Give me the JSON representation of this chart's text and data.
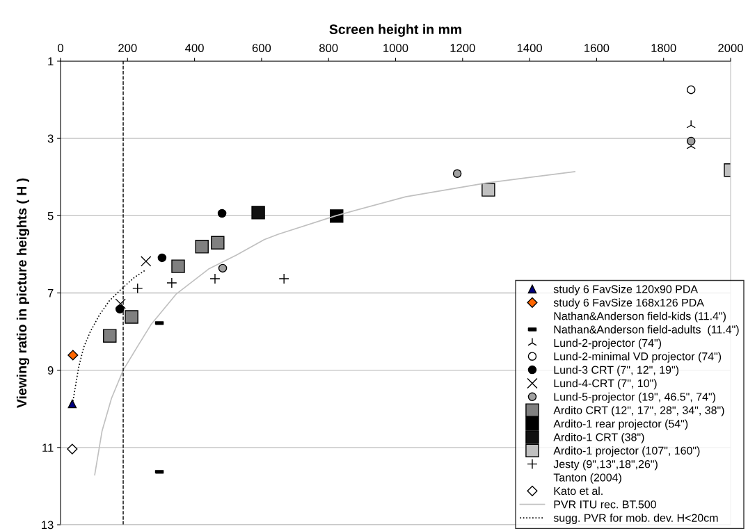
{
  "chart_data": {
    "type": "scatter",
    "xlabel": "Screen height in mm",
    "ylabel": "Viewing ratio in picture heights ( H )",
    "xlim": [
      0,
      2000
    ],
    "xticks": [
      0,
      200,
      400,
      600,
      800,
      1000,
      1200,
      1400,
      1600,
      1800,
      2000
    ],
    "ylim": [
      13,
      1
    ],
    "yticks": [
      1,
      3,
      5,
      7,
      9,
      11,
      13
    ],
    "grid": "y",
    "legend": "bottom right",
    "ref_lines": [
      {
        "axis": "x",
        "value": 187,
        "color": "#000000",
        "line_style": "dashed"
      }
    ],
    "series": [
      {
        "name": "study 6 FavSize 120x90 PDA",
        "color": "#000080",
        "marker": "triangle",
        "x": [
          35
        ],
        "values": [
          9.87
        ]
      },
      {
        "name": "study 6 FavSize 168x126 PDA",
        "color": "#ff6600",
        "marker": "diamond",
        "x": [
          37
        ],
        "values": [
          8.61
        ]
      },
      {
        "name": "Nathan&Anderson field-kids (11.4\")",
        "color": "#000000",
        "marker": "none"
      },
      {
        "name": "Nathan&Anderson field-adults  (11.4\")",
        "color": "#000000",
        "x": [
          295,
          295
        ],
        "values": [
          7.78,
          11.63
        ]
      },
      {
        "name": "Lund-2-projector (74\")",
        "color": "#000000",
        "marker": "star",
        "x": [
          1882,
          1882
        ],
        "values": [
          2.66,
          3.2
        ]
      },
      {
        "name": "Lund-2-minimal VD projector (74\")",
        "color": "#ffffff",
        "marker": "circle",
        "x": [
          1882
        ],
        "values": [
          1.74
        ]
      },
      {
        "name": "Lund-3 CRT (7\", 12\", 19\")",
        "color": "#000000",
        "marker": "circle",
        "x": [
          177,
          303,
          482
        ],
        "values": [
          7.42,
          6.09,
          4.94
        ]
      },
      {
        "name": "Lund-4-CRT (7\", 10\")",
        "color": "#000000",
        "marker": "cross",
        "x": [
          179,
          255
        ],
        "values": [
          7.28,
          6.18
        ]
      },
      {
        "name": "Lund-5-projector (19\", 46.5\", 74\")",
        "color": "#a0a0a0",
        "marker": "circle",
        "x": [
          484,
          1184,
          1882
        ],
        "values": [
          6.36,
          3.91,
          3.07
        ]
      },
      {
        "name": "Ardito CRT (12\", 17\", 28\", 34\", 38\")",
        "color": "#808080",
        "marker": "square",
        "x": [
          147,
          212,
          351,
          422,
          469
        ],
        "values": [
          8.11,
          7.62,
          6.31,
          5.8,
          5.7
        ]
      },
      {
        "name": "Ardito-1 rear projector (54\")",
        "color": "#000000",
        "marker": "square",
        "x": [
          824
        ],
        "values": [
          5.01
        ]
      },
      {
        "name": "Ardito-1 CRT (38\")",
        "color": "#111111",
        "marker": "square",
        "x": [
          590
        ],
        "values": [
          4.92
        ]
      },
      {
        "name": "Ardito-1 projector (107\", 160\")",
        "color": "#c0c0c0",
        "marker": "square",
        "x": [
          1277,
          2000
        ],
        "values": [
          4.33,
          3.82
        ]
      },
      {
        "name": "Jesty (9\",13\",18\",26\")",
        "color": "#000000",
        "marker": "plus",
        "x": [
          230,
          332,
          461,
          667
        ],
        "values": [
          6.88,
          6.74,
          6.63,
          6.63
        ]
      },
      {
        "name": "Tanton (2004)",
        "color": "#000000",
        "marker": "none"
      },
      {
        "name": "Kato et al.",
        "color": "#ffffff",
        "marker": "diamond",
        "x": [
          35
        ],
        "values": [
          11.04
        ]
      },
      {
        "name": "PVR ITU rec. BT.500",
        "type": "line",
        "color": "#c0c0c0",
        "marker": "none",
        "line_style": "solid",
        "x": [
          102,
          124,
          152,
          187,
          228,
          270,
          345,
          442,
          525,
          608,
          650,
          822,
          1030,
          1273,
          1535
        ],
        "values": [
          11.71,
          10.57,
          9.73,
          9.0,
          8.41,
          7.82,
          7.03,
          6.38,
          6.02,
          5.62,
          5.48,
          5.0,
          4.51,
          4.15,
          3.86
        ]
      },
      {
        "name": "sugg. PVR for mob. dev. H<20cm",
        "type": "line",
        "color": "#000000",
        "marker": "none",
        "line_style": "dotted",
        "x": [
          37,
          54,
          69,
          89,
          116,
          145,
          179,
          220,
          255
        ],
        "values": [
          9.8,
          8.93,
          8.41,
          8.0,
          7.57,
          7.21,
          6.92,
          6.6,
          6.4
        ]
      }
    ]
  }
}
